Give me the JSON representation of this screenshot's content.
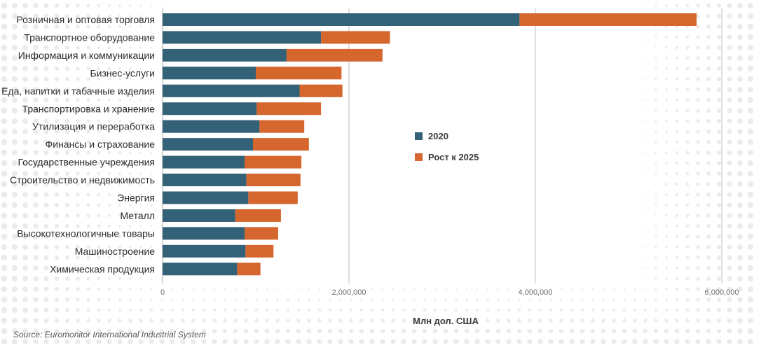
{
  "chart_data": {
    "type": "bar",
    "orientation": "horizontal",
    "stacked": true,
    "categories": [
      "Розничная и оптовая торговля",
      "Транспортное оборудование",
      "Информация и коммуникации",
      "Бизнес-услуги",
      "Еда, напитки и табачные изделия",
      "Транспортировка и хранение",
      "Утилизация и переработка",
      "Финансы и страхование",
      "Государственные учреждения",
      "Строительство и недвижимость",
      "Энергия",
      "Металл",
      "Высокотехнологичные товары",
      "Машиностроение",
      "Химическая продукция"
    ],
    "series": [
      {
        "name": "2020",
        "color": "#336178",
        "values": [
          3830000,
          1700000,
          1330000,
          1000000,
          1470000,
          1010000,
          1040000,
          970000,
          880000,
          900000,
          920000,
          780000,
          880000,
          890000,
          800000
        ]
      },
      {
        "name": "Рост к 2025",
        "color": "#d4662e",
        "values": [
          1900000,
          740000,
          1030000,
          920000,
          460000,
          690000,
          480000,
          600000,
          610000,
          580000,
          530000,
          490000,
          360000,
          300000,
          250000
        ]
      }
    ],
    "xlabel": "Млн дол. США",
    "xlim": [
      0,
      6000000
    ],
    "xticks": [
      0,
      2000000,
      4000000,
      6000000
    ],
    "xtick_labels": [
      "0",
      "2,000,000",
      "4,000,000",
      "6,000,000"
    ],
    "grid": true,
    "legend_position": "center-right",
    "source": "Source: Euromonitor International Industrial System"
  }
}
